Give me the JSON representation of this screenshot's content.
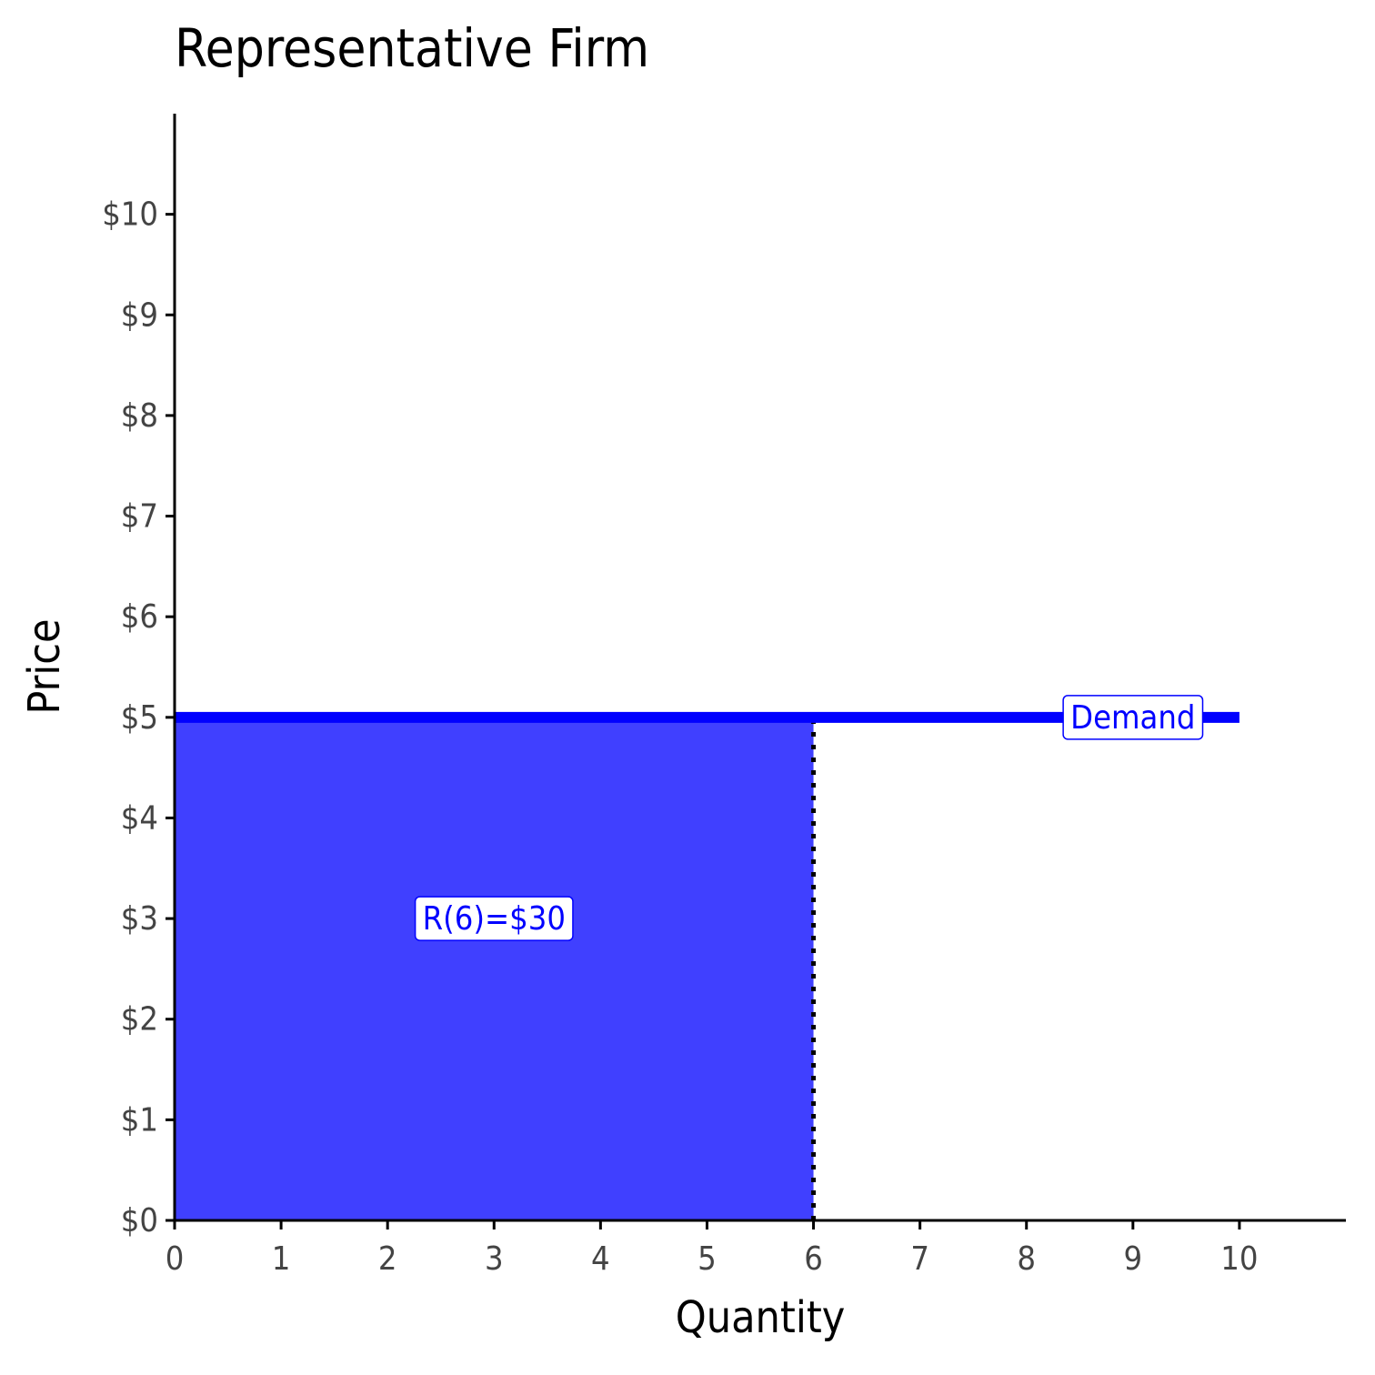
{
  "chart_data": {
    "type": "line",
    "title": "Representative Firm",
    "x_label": "Quantity",
    "y_label": "Price",
    "xlim": [
      0,
      11
    ],
    "ylim": [
      0,
      11
    ],
    "xticks": [
      0,
      1,
      2,
      3,
      4,
      5,
      6,
      7,
      8,
      9,
      10
    ],
    "yticks": [
      {
        "value": 0,
        "label": "$0"
      },
      {
        "value": 1,
        "label": "$1"
      },
      {
        "value": 2,
        "label": "$2"
      },
      {
        "value": 3,
        "label": "$3"
      },
      {
        "value": 4,
        "label": "$4"
      },
      {
        "value": 5,
        "label": "$5"
      },
      {
        "value": 6,
        "label": "$6"
      },
      {
        "value": 7,
        "label": "$7"
      },
      {
        "value": 8,
        "label": "$8"
      },
      {
        "value": 9,
        "label": "$9"
      },
      {
        "value": 10,
        "label": "$10"
      }
    ],
    "series": [
      {
        "color": "#0000ff",
        "x": [
          0,
          10
        ],
        "values": [
          5,
          5
        ]
      }
    ],
    "area": {
      "color": "#4040ff",
      "x": [
        0,
        6
      ],
      "values": [
        5,
        5
      ]
    },
    "annotations": [
      {
        "text": "Demand",
        "x": 9,
        "y": 5
      },
      {
        "text": "R(6)=$30",
        "x": 3,
        "y": 3
      }
    ]
  }
}
